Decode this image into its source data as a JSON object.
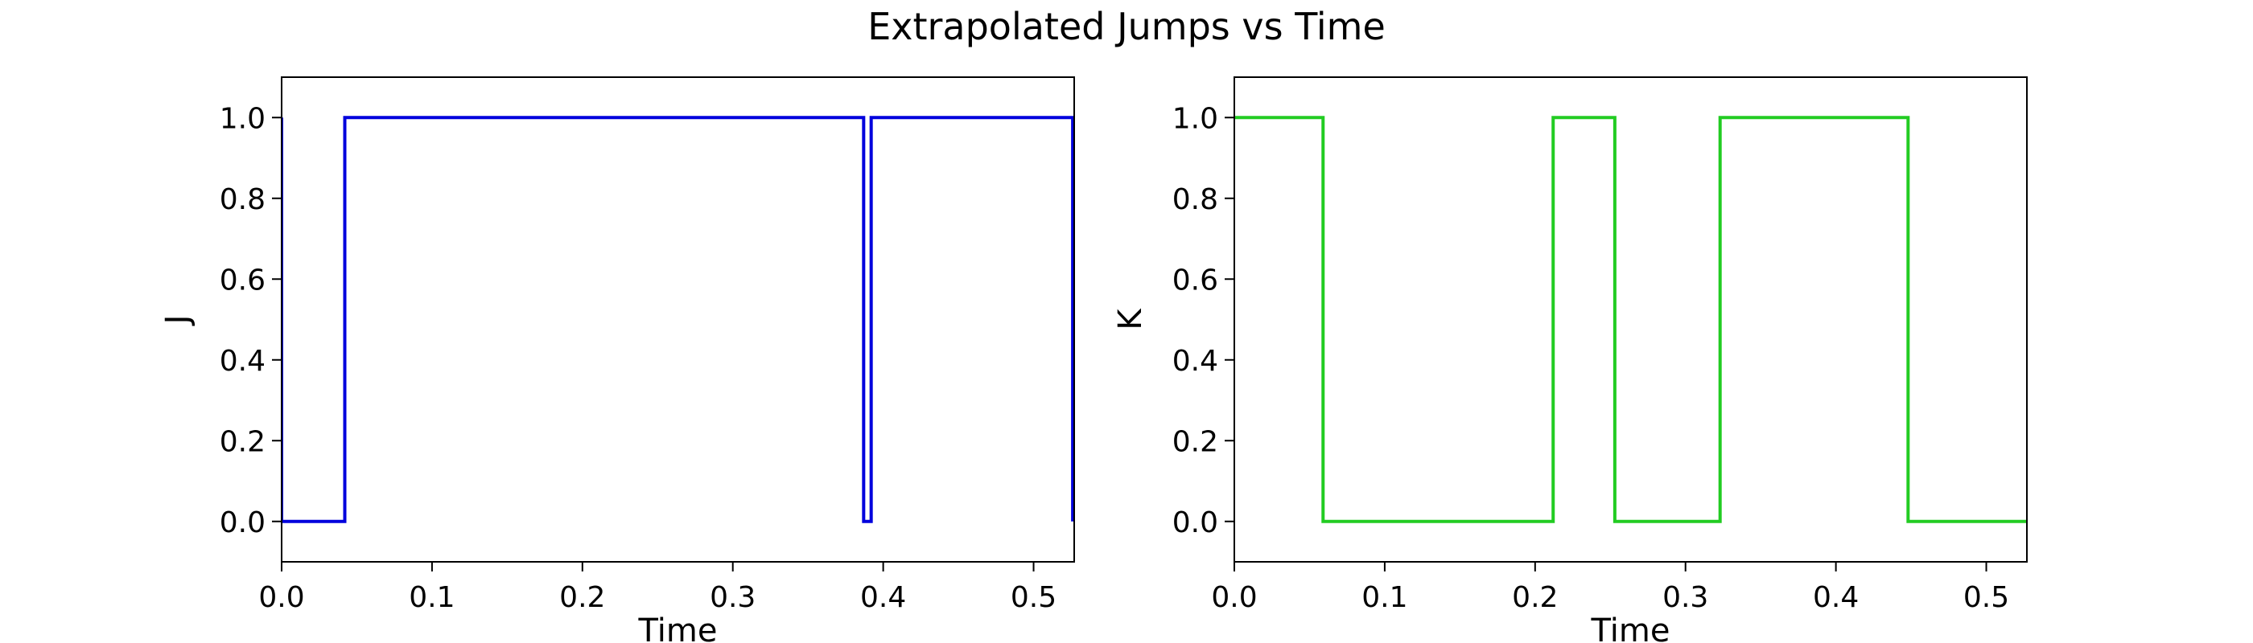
{
  "figure_title": "Extrapolated Jumps vs Time",
  "chart_data": [
    {
      "type": "line",
      "drawstyle": "steps-post",
      "title": "",
      "xlabel": "Time",
      "ylabel": "J",
      "xlim": [
        0.0,
        0.527
      ],
      "ylim": [
        -0.1,
        1.1
      ],
      "xticks": [
        0.0,
        0.1,
        0.2,
        0.3,
        0.4,
        0.5
      ],
      "xtick_labels": [
        "0.0",
        "0.1",
        "0.2",
        "0.3",
        "0.4",
        "0.5"
      ],
      "yticks": [
        0.0,
        0.2,
        0.4,
        0.6,
        0.8,
        1.0
      ],
      "ytick_labels": [
        "0.0",
        "0.2",
        "0.4",
        "0.6",
        "0.8",
        "1.0"
      ],
      "grid": false,
      "series": [
        {
          "color": "#0000dd",
          "x": [
            0.0,
            0.0,
            0.042,
            0.387,
            0.392,
            0.526,
            0.526
          ],
          "y": [
            1.0,
            0.0,
            1.0,
            0.0,
            1.0,
            0.0,
            0.0
          ]
        }
      ]
    },
    {
      "type": "line",
      "drawstyle": "steps-post",
      "title": "",
      "xlabel": "Time",
      "ylabel": "K",
      "xlim": [
        0.0,
        0.527
      ],
      "ylim": [
        -0.1,
        1.1
      ],
      "xticks": [
        0.0,
        0.1,
        0.2,
        0.3,
        0.4,
        0.5
      ],
      "xtick_labels": [
        "0.0",
        "0.1",
        "0.2",
        "0.3",
        "0.4",
        "0.5"
      ],
      "yticks": [
        0.0,
        0.2,
        0.4,
        0.6,
        0.8,
        1.0
      ],
      "ytick_labels": [
        "0.0",
        "0.2",
        "0.4",
        "0.6",
        "0.8",
        "1.0"
      ],
      "grid": false,
      "series": [
        {
          "color": "#22cc22",
          "x": [
            0.0,
            0.059,
            0.212,
            0.253,
            0.323,
            0.448,
            0.527
          ],
          "y": [
            1.0,
            0.0,
            1.0,
            0.0,
            1.0,
            0.0,
            0.0
          ]
        }
      ]
    }
  ]
}
